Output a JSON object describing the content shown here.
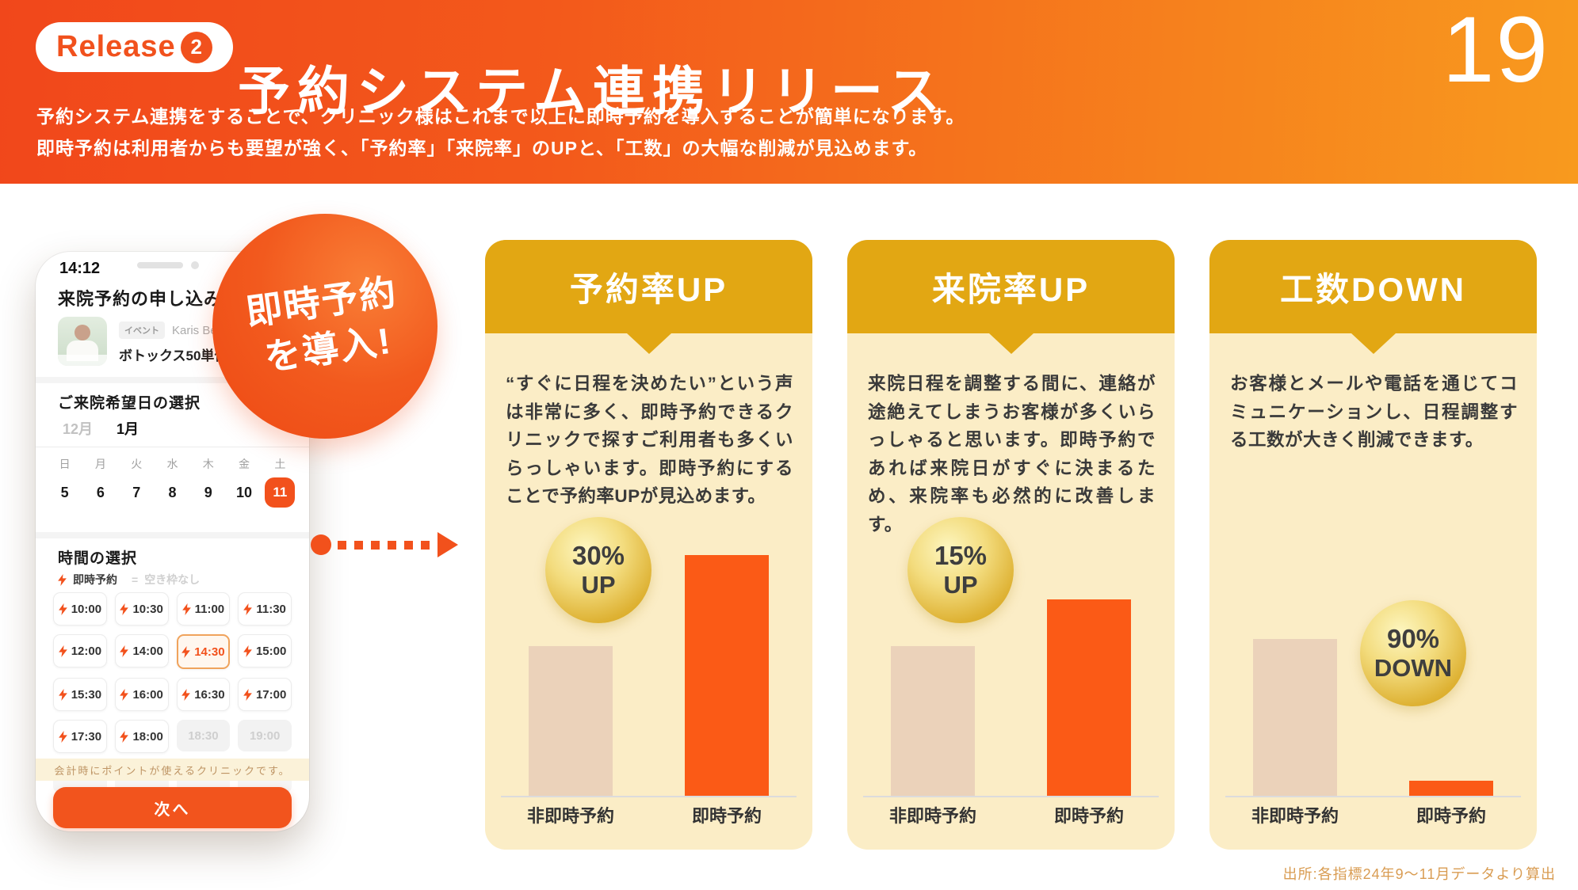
{
  "header": {
    "badge": {
      "label": "Release",
      "number": "2"
    },
    "title": "予約システム連携リリース",
    "subtitle_line1": "予約システム連携をすることで、クリニック様はこれまで以上に即時予約を導入することが簡単になります。",
    "subtitle_line2": "即時予約は利用者からも要望が強く、「予約率」「来院率」のUPと、「工数」の大幅な削減が見込めます。",
    "page_number": "19"
  },
  "phone": {
    "status_time": "14:12",
    "screen_title": "来院予約の申し込み",
    "booking": {
      "badge": "イベント",
      "clinic": "Karis Beauty Cli",
      "service": "ボトックス50単位エラ肩"
    },
    "date_section": {
      "title": "ご来院希望日の選択",
      "months": [
        {
          "label": "12月",
          "active": false
        },
        {
          "label": "1月",
          "active": true
        }
      ],
      "weekdays": [
        "日",
        "月",
        "火",
        "水",
        "木",
        "金",
        "土"
      ],
      "dates": [
        "5",
        "6",
        "7",
        "8",
        "9",
        "10",
        "11"
      ],
      "selected_date": "11"
    },
    "time_section": {
      "title": "時間の選択",
      "legend_instant": "即時予約",
      "legend_separator": "=",
      "legend_unavailable": "空き枠なし",
      "slots": [
        {
          "label": "10:00",
          "state": "instant"
        },
        {
          "label": "10:30",
          "state": "instant"
        },
        {
          "label": "11:00",
          "state": "instant"
        },
        {
          "label": "11:30",
          "state": "instant"
        },
        {
          "label": "12:00",
          "state": "instant"
        },
        {
          "label": "14:00",
          "state": "instant"
        },
        {
          "label": "14:30",
          "state": "selected"
        },
        {
          "label": "15:00",
          "state": "instant"
        },
        {
          "label": "15:30",
          "state": "instant"
        },
        {
          "label": "16:00",
          "state": "instant"
        },
        {
          "label": "16:30",
          "state": "instant"
        },
        {
          "label": "17:00",
          "state": "instant"
        },
        {
          "label": "17:30",
          "state": "instant"
        },
        {
          "label": "18:00",
          "state": "instant"
        },
        {
          "label": "18:30",
          "state": "disabled"
        },
        {
          "label": "19:00",
          "state": "disabled"
        },
        {
          "label": "",
          "state": "faded"
        },
        {
          "label": "",
          "state": "faded"
        },
        {
          "label": "",
          "state": "faded"
        },
        {
          "label": "",
          "state": "faded"
        }
      ]
    },
    "banner": "会計時にポイントが使えるクリニックです。",
    "next_button": "次へ"
  },
  "intro_circle": {
    "line1": "即時予約",
    "line2": "を導入!"
  },
  "cards": [
    {
      "title": "予約率UP",
      "body": "“すぐに日程を決めたい”という声は非常に多く、即時予約できるクリニックで探すご利用者も多くいらっしゃいます。即時予約にすることで予約率UPが見込めます。",
      "badge_line1": "30%",
      "badge_line2": "UP",
      "categories": [
        "非即時予約",
        "即時予約"
      ]
    },
    {
      "title": "来院率UP",
      "body": "来院日程を調整する間に、連絡が途絶えてしまうお客様が多くいらっしゃると思います。即時予約であれば来院日がすぐに決まるため、来院率も必然的に改善します。",
      "badge_line1": "15%",
      "badge_line2": "UP",
      "categories": [
        "非即時予約",
        "即時予約"
      ]
    },
    {
      "title": "工数DOWN",
      "body": "お客様とメールや電話を通じてコミュニケーションし、日程調整する工数が大きく削減できます。",
      "badge_line1": "90%",
      "badge_line2": "DOWN",
      "categories": [
        "非即時予約",
        "即時予約"
      ]
    }
  ],
  "chart_data": [
    {
      "type": "bar",
      "title": "予約率UP",
      "categories": [
        "非即時予約",
        "即時予約"
      ],
      "values_pct": [
        61,
        98
      ],
      "unit": "percent_of_chart_height_as_depicted",
      "badge_label": "30% UP",
      "bar_colors": [
        "#EBD2BA",
        "#FB5A16"
      ],
      "grid": false,
      "legend_position": "none"
    },
    {
      "type": "bar",
      "title": "来院率UP",
      "categories": [
        "非即時予約",
        "即時予約"
      ],
      "values_pct": [
        61,
        80
      ],
      "unit": "percent_of_chart_height_as_depicted",
      "badge_label": "15% UP",
      "bar_colors": [
        "#EBD2BA",
        "#FB5A16"
      ],
      "grid": false,
      "legend_position": "none"
    },
    {
      "type": "bar",
      "title": "工数DOWN",
      "categories": [
        "非即時予約",
        "即時予約"
      ],
      "values_pct": [
        64,
        6
      ],
      "unit": "percent_of_chart_height_as_depicted",
      "badge_label": "90% DOWN",
      "bar_colors": [
        "#EBD2BA",
        "#FB5A16"
      ],
      "grid": false,
      "legend_position": "none"
    }
  ],
  "footnote": "出所:各指標24年9〜11月データより算出",
  "colors": {
    "accent_orange": "#F2511C",
    "bar_orange": "#FB5A16",
    "bar_beige": "#EBD2BA",
    "card_header_gold": "#E2A713",
    "card_body_cream": "#FBEDC6",
    "badge_gold": "#DEB234",
    "header_gradient_start": "#F1471B",
    "header_gradient_end": "#F89A1E",
    "footnote_text": "#D99C52"
  }
}
